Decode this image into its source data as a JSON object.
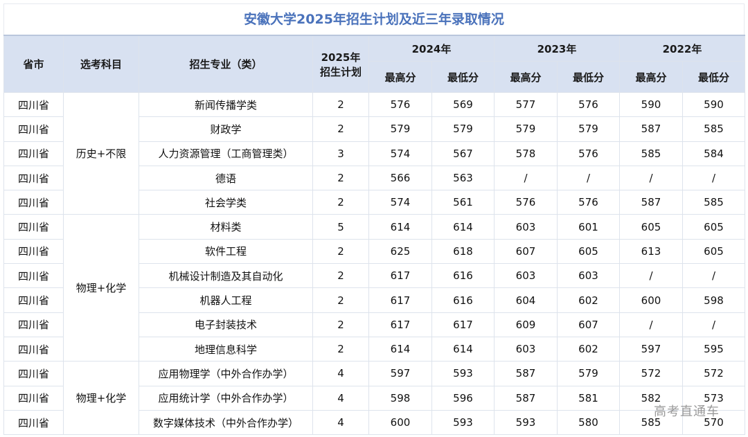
{
  "title": "安徽大学2025年招生计划及近三年录取情况",
  "headers": {
    "province": "省市",
    "subjects": "选考科目",
    "major": "招生专业（类）",
    "plan_line1": "2025年",
    "plan_line2": "招生计划",
    "years": [
      "2024年",
      "2023年",
      "2022年"
    ],
    "max": "最高分",
    "min": "最低分"
  },
  "groups": [
    {
      "subjects": "历史+不限",
      "rowspan": 5
    },
    {
      "subjects": "物理+化学",
      "rowspan": 6
    },
    {
      "subjects": "物理+化学",
      "rowspan": 3
    }
  ],
  "rows": [
    {
      "province": "四川省",
      "major": "新闻传播学类",
      "plan": "2",
      "y2024_max": "576",
      "y2024_min": "569",
      "y2023_max": "577",
      "y2023_min": "576",
      "y2022_max": "590",
      "y2022_min": "590"
    },
    {
      "province": "四川省",
      "major": "财政学",
      "plan": "2",
      "y2024_max": "579",
      "y2024_min": "579",
      "y2023_max": "579",
      "y2023_min": "579",
      "y2022_max": "587",
      "y2022_min": "585"
    },
    {
      "province": "四川省",
      "major": "人力资源管理（工商管理类）",
      "plan": "3",
      "y2024_max": "574",
      "y2024_min": "567",
      "y2023_max": "578",
      "y2023_min": "576",
      "y2022_max": "585",
      "y2022_min": "584"
    },
    {
      "province": "四川省",
      "major": "德语",
      "plan": "2",
      "y2024_max": "566",
      "y2024_min": "563",
      "y2023_max": "/",
      "y2023_min": "/",
      "y2022_max": "/",
      "y2022_min": "/"
    },
    {
      "province": "四川省",
      "major": "社会学类",
      "plan": "2",
      "y2024_max": "574",
      "y2024_min": "561",
      "y2023_max": "576",
      "y2023_min": "576",
      "y2022_max": "587",
      "y2022_min": "585"
    },
    {
      "province": "四川省",
      "major": "材料类",
      "plan": "5",
      "y2024_max": "614",
      "y2024_min": "614",
      "y2023_max": "603",
      "y2023_min": "601",
      "y2022_max": "605",
      "y2022_min": "605"
    },
    {
      "province": "四川省",
      "major": "软件工程",
      "plan": "2",
      "y2024_max": "625",
      "y2024_min": "618",
      "y2023_max": "607",
      "y2023_min": "605",
      "y2022_max": "613",
      "y2022_min": "605"
    },
    {
      "province": "四川省",
      "major": "机械设计制造及其自动化",
      "plan": "2",
      "y2024_max": "617",
      "y2024_min": "616",
      "y2023_max": "603",
      "y2023_min": "603",
      "y2022_max": "/",
      "y2022_min": "/"
    },
    {
      "province": "四川省",
      "major": "机器人工程",
      "plan": "2",
      "y2024_max": "617",
      "y2024_min": "616",
      "y2023_max": "604",
      "y2023_min": "602",
      "y2022_max": "600",
      "y2022_min": "598"
    },
    {
      "province": "四川省",
      "major": "电子封装技术",
      "plan": "2",
      "y2024_max": "617",
      "y2024_min": "617",
      "y2023_max": "609",
      "y2023_min": "607",
      "y2022_max": "/",
      "y2022_min": "/"
    },
    {
      "province": "四川省",
      "major": "地理信息科学",
      "plan": "2",
      "y2024_max": "614",
      "y2024_min": "614",
      "y2023_max": "603",
      "y2023_min": "602",
      "y2022_max": "597",
      "y2022_min": "595"
    },
    {
      "province": "四川省",
      "major": "应用物理学（中外合作办学）",
      "plan": "4",
      "y2024_max": "597",
      "y2024_min": "593",
      "y2023_max": "587",
      "y2023_min": "579",
      "y2022_max": "572",
      "y2022_min": "572"
    },
    {
      "province": "四川省",
      "major": "应用统计学（中外合作办学）",
      "plan": "4",
      "y2024_max": "598",
      "y2024_min": "596",
      "y2023_max": "587",
      "y2023_min": "581",
      "y2022_max": "582",
      "y2022_min": "573"
    },
    {
      "province": "四川省",
      "major": "数字媒体技术（中外合作办学）",
      "plan": "4",
      "y2024_max": "600",
      "y2024_min": "593",
      "y2023_max": "593",
      "y2023_min": "580",
      "y2022_max": "585",
      "y2022_min": "570"
    }
  ],
  "watermark": "高考直通车",
  "colors": {
    "title": "#4a72bb",
    "header_bg": "#d8e1f1",
    "border": "#dde3ec"
  }
}
